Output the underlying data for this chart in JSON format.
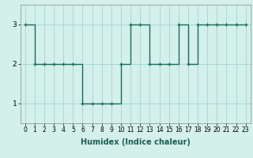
{
  "x": [
    0,
    1,
    2,
    3,
    4,
    5,
    6,
    7,
    8,
    9,
    10,
    11,
    12,
    13,
    14,
    15,
    16,
    17,
    18,
    19,
    20,
    21,
    22,
    23
  ],
  "y": [
    3,
    2,
    2,
    2,
    2,
    2,
    1,
    1,
    1,
    1,
    2,
    3,
    3,
    2,
    2,
    2,
    3,
    2,
    3,
    3,
    3,
    3,
    3,
    3
  ],
  "xlabel": "Humidex (Indice chaleur)",
  "line_color": "#1a6b5a",
  "marker_color": "#1a6b5a",
  "bg_color": "#d4f0eb",
  "grid_color": "#aad8d0",
  "xlim": [
    -0.5,
    23.5
  ],
  "ylim": [
    0.5,
    3.5
  ],
  "yticks": [
    1,
    2,
    3
  ],
  "xticks": [
    0,
    1,
    2,
    3,
    4,
    5,
    6,
    7,
    8,
    9,
    10,
    11,
    12,
    13,
    14,
    15,
    16,
    17,
    18,
    19,
    20,
    21,
    22,
    23
  ],
  "tick_fontsize": 5.5,
  "xlabel_fontsize": 7
}
